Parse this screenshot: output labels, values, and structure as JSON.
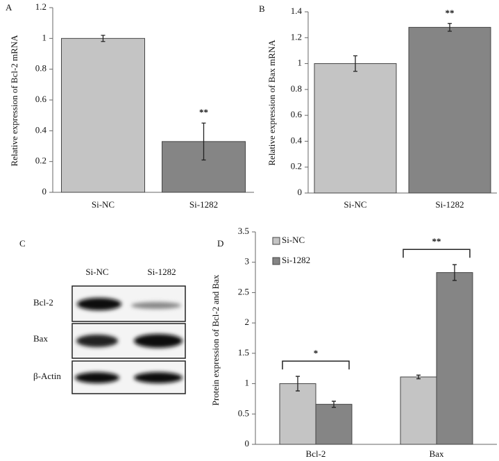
{
  "chart_data": [
    {
      "type": "bar",
      "panel": "A",
      "y_label": "Relative expression of Bcl-2 mRNA",
      "categories": [
        "Si-NC",
        "Si-1282"
      ],
      "values": [
        1.0,
        0.33
      ],
      "errors": [
        0.02,
        0.12
      ],
      "colors": [
        "#c4c4c4",
        "#858585"
      ],
      "significance": [
        null,
        "**"
      ],
      "ylim": [
        0,
        1.2
      ],
      "yticks": [
        0,
        0.2,
        0.4,
        0.6,
        0.8,
        1,
        1.2
      ]
    },
    {
      "type": "bar",
      "panel": "B",
      "y_label": "Relative expression of Bax mRNA",
      "categories": [
        "Si-NC",
        "Si-1282"
      ],
      "values": [
        1.0,
        1.28
      ],
      "errors": [
        0.06,
        0.03
      ],
      "colors": [
        "#c4c4c4",
        "#858585"
      ],
      "significance": [
        null,
        "**"
      ],
      "ylim": [
        0,
        1.4
      ],
      "yticks": [
        0,
        0.2,
        0.4,
        0.6,
        0.8,
        1,
        1.2,
        1.4
      ]
    },
    {
      "type": "grouped-bar",
      "panel": "D",
      "y_label": "Protein expression of Bcl-2 and Bax",
      "categories": [
        "Bcl-2",
        "Bax"
      ],
      "significance": [
        "*",
        "**"
      ],
      "series": [
        {
          "name": "Si-NC",
          "color": "#c4c4c4",
          "values": [
            1.0,
            1.11
          ],
          "errors": [
            0.12,
            0.03
          ]
        },
        {
          "name": "Si-1282",
          "color": "#858585",
          "values": [
            0.66,
            2.83
          ],
          "errors": [
            0.05,
            0.13
          ]
        }
      ],
      "ylim": [
        0,
        3.5
      ],
      "yticks": [
        0,
        0.5,
        1,
        1.5,
        2,
        2.5,
        3,
        3.5
      ]
    }
  ],
  "blot": {
    "panel": "C",
    "lanes": [
      "Si-NC",
      "Si-1282"
    ],
    "proteins": [
      "Bcl-2",
      "Bax",
      "β-Actin"
    ]
  }
}
